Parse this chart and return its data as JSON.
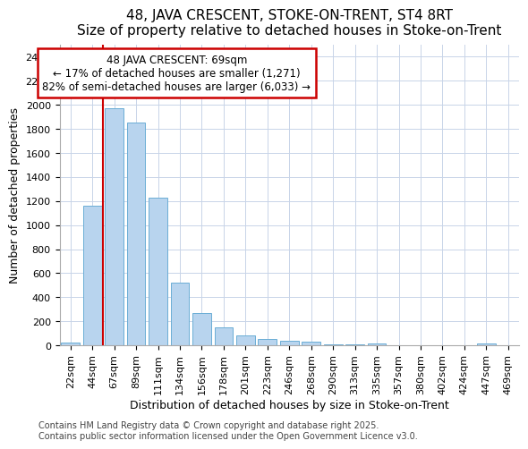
{
  "title": "48, JAVA CRESCENT, STOKE-ON-TRENT, ST4 8RT",
  "subtitle": "Size of property relative to detached houses in Stoke-on-Trent",
  "xlabel": "Distribution of detached houses by size in Stoke-on-Trent",
  "ylabel": "Number of detached properties",
  "categories": [
    "22sqm",
    "44sqm",
    "67sqm",
    "89sqm",
    "111sqm",
    "134sqm",
    "156sqm",
    "178sqm",
    "201sqm",
    "223sqm",
    "246sqm",
    "268sqm",
    "290sqm",
    "313sqm",
    "335sqm",
    "357sqm",
    "380sqm",
    "402sqm",
    "424sqm",
    "447sqm",
    "469sqm"
  ],
  "values": [
    25,
    1160,
    1970,
    1850,
    1230,
    520,
    270,
    150,
    85,
    50,
    38,
    30,
    10,
    5,
    12,
    3,
    2,
    1,
    1,
    15,
    0
  ],
  "bar_color": "#b8d4ee",
  "bar_edge_color": "#6baed6",
  "vline_x_idx": 2,
  "vline_color": "#cc0000",
  "annotation_text": "48 JAVA CRESCENT: 69sqm\n← 17% of detached houses are smaller (1,271)\n82% of semi-detached houses are larger (6,033) →",
  "annotation_box_color": "#ffffff",
  "annotation_box_edge": "#cc0000",
  "ylim": [
    0,
    2500
  ],
  "yticks": [
    0,
    200,
    400,
    600,
    800,
    1000,
    1200,
    1400,
    1600,
    1800,
    2000,
    2200,
    2400
  ],
  "background_color": "#ffffff",
  "plot_bg_color": "#ffffff",
  "grid_color": "#c8d4e8",
  "footer_line1": "Contains HM Land Registry data © Crown copyright and database right 2025.",
  "footer_line2": "Contains public sector information licensed under the Open Government Licence v3.0.",
  "title_fontsize": 11,
  "subtitle_fontsize": 9.5,
  "xlabel_fontsize": 9,
  "ylabel_fontsize": 9,
  "tick_fontsize": 8,
  "annotation_fontsize": 8.5,
  "footer_fontsize": 7
}
